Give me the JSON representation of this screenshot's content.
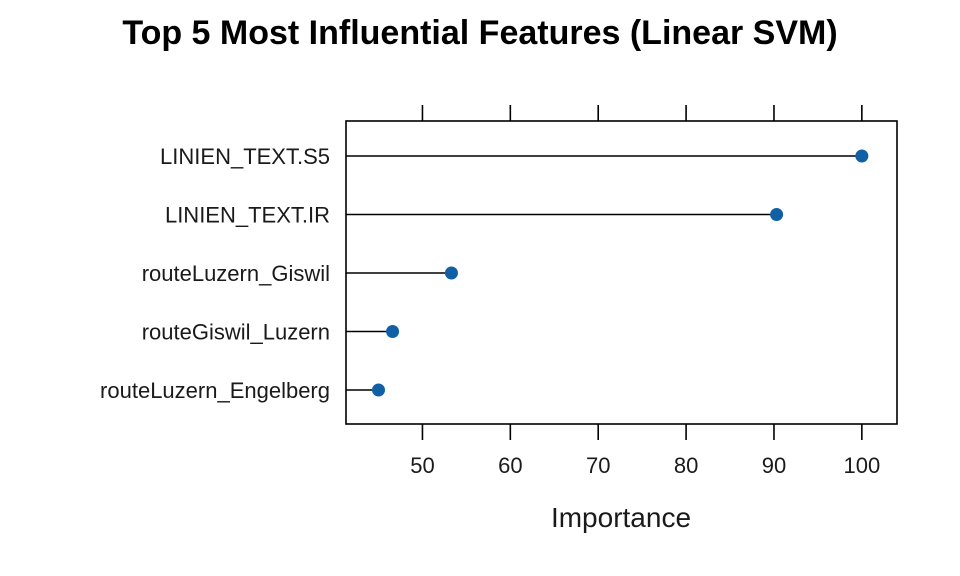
{
  "chart_data": {
    "type": "dot",
    "title": "Top 5 Most Influential Features (Linear SVM)",
    "xlabel": "Importance",
    "ylabel": "",
    "xlim": [
      41.3,
      104.0
    ],
    "xticks": [
      50,
      60,
      70,
      80,
      90,
      100
    ],
    "xtick_labels": [
      "50",
      "60",
      "70",
      "80",
      "90",
      "100"
    ],
    "categories": [
      "LINIEN_TEXT.S5",
      "LINIEN_TEXT.IR",
      "routeLuzern_Giswil",
      "routeGiswil_Luzern",
      "routeLuzern_Engelberg"
    ],
    "values": [
      100.0,
      90.3,
      53.3,
      46.6,
      45.0
    ],
    "point_color": "#1160a6",
    "line_color": "#000000",
    "grid": false,
    "legend": "none"
  }
}
